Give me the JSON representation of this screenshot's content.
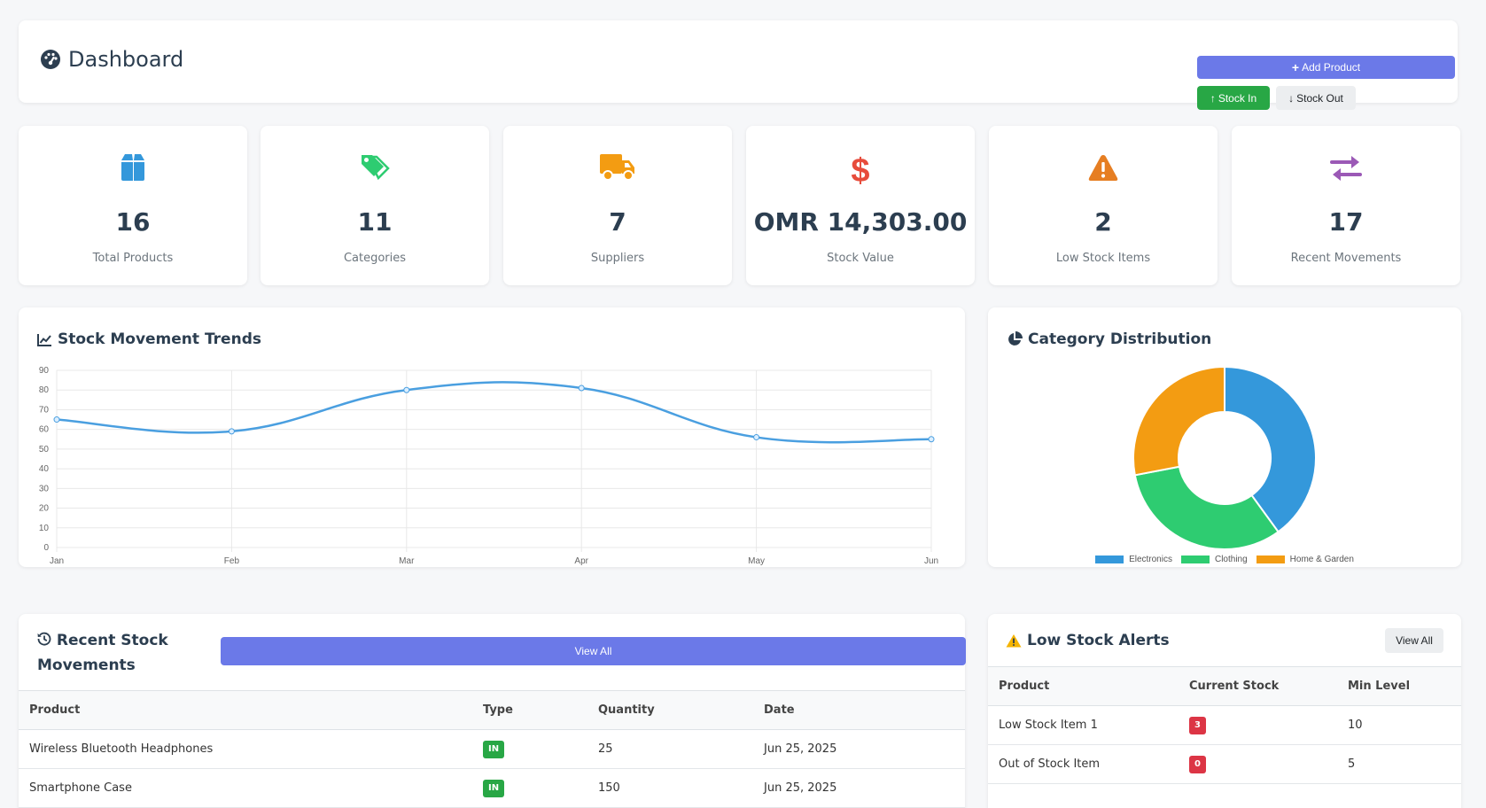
{
  "header": {
    "title": "Dashboard",
    "add_product": "Add Product",
    "stock_in": "Stock In",
    "stock_out": "Stock Out"
  },
  "stats": [
    {
      "value": "16",
      "label": "Total Products",
      "icon": "box-icon",
      "color": "#3498db"
    },
    {
      "value": "11",
      "label": "Categories",
      "icon": "tags-icon",
      "color": "#2ecc71"
    },
    {
      "value": "7",
      "label": "Suppliers",
      "icon": "truck-icon",
      "color": "#f39c12"
    },
    {
      "value": "OMR 14,303.00",
      "label": "Stock Value",
      "icon": "dollar-icon",
      "color": "#e74c3c"
    },
    {
      "value": "2",
      "label": "Low Stock Items",
      "icon": "warning-icon",
      "color": "#e67e22"
    },
    {
      "value": "17",
      "label": "Recent Movements",
      "icon": "exchange-icon",
      "color": "#9b59b6"
    }
  ],
  "trends": {
    "title": "Stock Movement Trends",
    "icon": "line-chart-icon"
  },
  "category": {
    "title": "Category Distribution",
    "icon": "pie-chart-icon"
  },
  "chart_data": [
    {
      "type": "line",
      "title": "Stock Movement Trends",
      "categories": [
        "Jan",
        "Feb",
        "Mar",
        "Apr",
        "May",
        "Jun"
      ],
      "series": [
        {
          "values": [
            65,
            59,
            80,
            81,
            56,
            55
          ],
          "color": "#4a9fe0"
        }
      ],
      "ylim": [
        0,
        90
      ],
      "yticks": [
        0,
        10,
        20,
        30,
        40,
        50,
        60,
        70,
        80,
        90
      ],
      "grid": true
    },
    {
      "type": "pie",
      "title": "Category Distribution",
      "labels": [
        "Electronics",
        "Clothing",
        "Home & Garden"
      ],
      "values": [
        40,
        32,
        28
      ],
      "colors": [
        "#3498db",
        "#2ecc71",
        "#f39c12"
      ],
      "legend": "bottom"
    }
  ],
  "movements": {
    "title_line1": "Recent Stock",
    "title_line2": "Movements",
    "view_all": "View All",
    "columns": [
      "Product",
      "Type",
      "Quantity",
      "Date"
    ],
    "rows": [
      {
        "product": "Wireless Bluetooth Headphones",
        "type": "IN",
        "quantity": "25",
        "date": "Jun 25, 2025"
      },
      {
        "product": "Smartphone Case",
        "type": "IN",
        "quantity": "150",
        "date": "Jun 25, 2025"
      }
    ]
  },
  "low_stock": {
    "title": "Low Stock Alerts",
    "view_all": "View All",
    "columns": [
      "Product",
      "Current Stock",
      "Min Level"
    ],
    "rows": [
      {
        "product": "Low Stock Item 1",
        "current": "3",
        "min": "10"
      },
      {
        "product": "Out of Stock Item",
        "current": "0",
        "min": "5"
      }
    ]
  }
}
